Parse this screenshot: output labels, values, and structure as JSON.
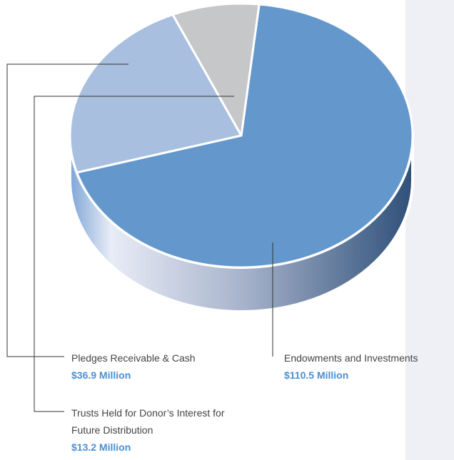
{
  "chart_data": {
    "type": "pie",
    "categories": [
      "Endowments and Investments",
      "Pledges Receivable & Cash",
      "Trusts Held for Donor’s Interest for Future Distribution"
    ],
    "values": [
      110.5,
      36.9,
      13.2
    ],
    "value_labels": [
      "$110.5 Million",
      "$36.9 Million",
      "$13.2 Million"
    ],
    "colors": [
      "#6498cc",
      "#a9bfdf",
      "#c6c7c9"
    ]
  }
}
